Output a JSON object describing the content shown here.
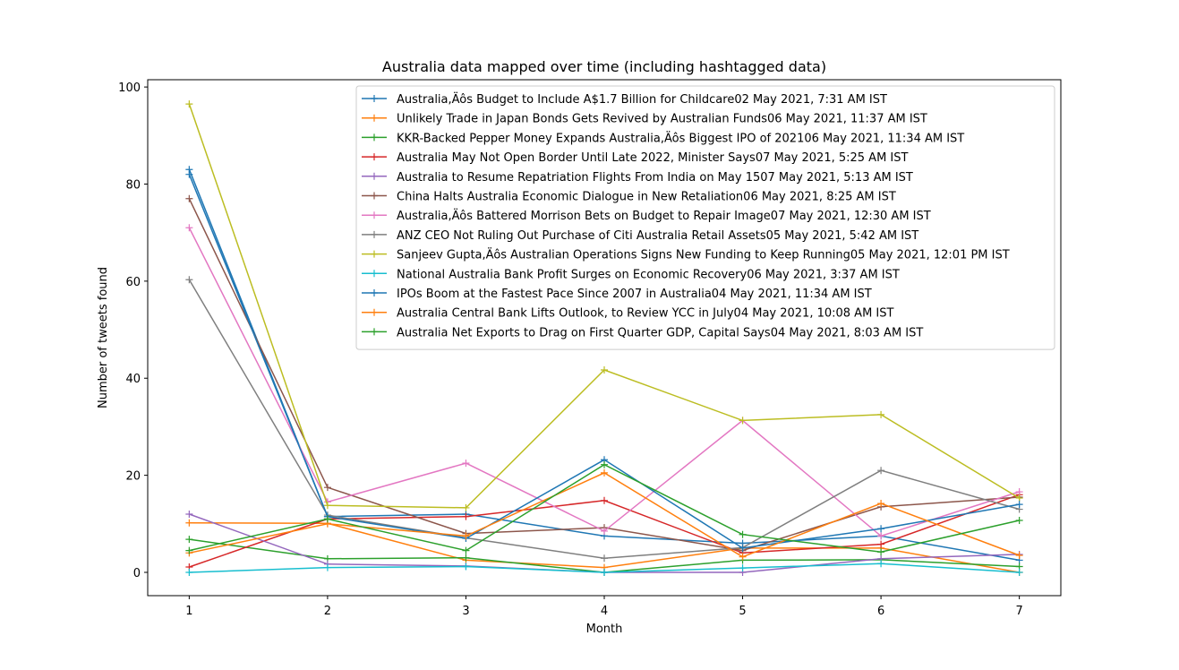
{
  "chart_data": {
    "type": "line",
    "title": "Australia data mapped over time (including hashtagged data)",
    "xlabel": "Month",
    "ylabel": "Number of tweets found",
    "xlim": [
      0.7,
      7.3
    ],
    "ylim": [
      -4.8,
      101.5
    ],
    "xticks": [
      1,
      2,
      3,
      4,
      5,
      6,
      7
    ],
    "yticks": [
      0,
      20,
      40,
      60,
      80,
      100
    ],
    "grid": false,
    "legend_position": "upper right",
    "x": [
      1,
      2,
      3,
      4,
      5,
      6,
      7
    ],
    "series": [
      {
        "name": "Australia,Äôs Budget to Include A$1.7 Billion for Childcare02 May 2021, 7:31 AM IST",
        "color": "#1f77b4",
        "values": [
          83,
          11.5,
          12,
          7.5,
          6,
          7.5,
          2.5
        ]
      },
      {
        "name": "Unlikely Trade in Japan Bonds Gets Revived by Australian Funds06 May 2021, 11:37 AM IST",
        "color": "#ff7f0e",
        "values": [
          10.2,
          10.1,
          2.5,
          1,
          5,
          5,
          0
        ]
      },
      {
        "name": "KKR-Backed Pepper Money Expands Australia,Äôs Biggest IPO of 202106 May 2021, 11:34 AM IST",
        "color": "#2ca02c",
        "values": [
          6.8,
          2.8,
          3,
          0,
          2.5,
          2.6,
          1.2
        ]
      },
      {
        "name": "Australia May Not Open Border Until Late 2022, Minister Says07 May 2021, 5:25 AM IST",
        "color": "#d62728",
        "values": [
          1.1,
          11,
          11.5,
          14.8,
          4,
          5.8,
          16
        ]
      },
      {
        "name": "Australia to Resume Repatriation Flights From India on May 1507 May 2021, 5:13 AM IST",
        "color": "#9467bd",
        "values": [
          12,
          1.7,
          1.3,
          0,
          0,
          2.8,
          3.7
        ]
      },
      {
        "name": "China Halts Australia Economic Dialogue in New Retaliation06 May 2021, 8:25 AM IST",
        "color": "#8c564b",
        "values": [
          77,
          17.5,
          8,
          9.2,
          4.5,
          13.5,
          15.5
        ]
      },
      {
        "name": "Australia,Äôs Battered Morrison Bets on Budget to Repair Image07 May 2021, 12:30 AM IST",
        "color": "#e377c2",
        "values": [
          71,
          14.5,
          22.5,
          8.5,
          31.3,
          7.5,
          16.6
        ]
      },
      {
        "name": "ANZ CEO Not Ruling Out Purchase of Citi Australia Retail Assets05 May 2021, 5:42 AM IST",
        "color": "#7f7f7f",
        "values": [
          60.3,
          11.8,
          7.1,
          2.9,
          5.1,
          21,
          13
        ]
      },
      {
        "name": "Sanjeev Gupta,Äôs Australian Operations Signs New Funding to Keep Running05 May 2021, 12:01 PM IST",
        "color": "#bcbd22",
        "values": [
          96.5,
          13.8,
          13.3,
          41.7,
          31.3,
          32.5,
          15.3
        ]
      },
      {
        "name": "National Australia Bank Profit Surges on Economic Recovery06 May 2021, 3:37 AM IST",
        "color": "#17becf",
        "values": [
          0,
          1,
          1.2,
          0,
          0.9,
          1.8,
          0
        ]
      },
      {
        "name": "IPOs Boom at the Fastest Pace Since 2007 in Australia04 May 2021, 11:34 AM IST",
        "color": "#1f77b4",
        "values": [
          82,
          11.5,
          7,
          23.2,
          5,
          9,
          14
        ]
      },
      {
        "name": "Australia Central Bank Lifts Outlook, to Review YCC in July04 May 2021, 10:08 AM IST",
        "color": "#ff7f0e",
        "values": [
          4,
          10,
          7.5,
          20.5,
          3.2,
          14.2,
          3.5
        ]
      },
      {
        "name": "Australia Net Exports to Drag on First Quarter GDP, Capital Says04 May 2021, 8:03 AM IST",
        "color": "#2ca02c",
        "values": [
          4.5,
          11,
          4.5,
          22.2,
          7.8,
          4.2,
          10.7
        ]
      }
    ]
  }
}
